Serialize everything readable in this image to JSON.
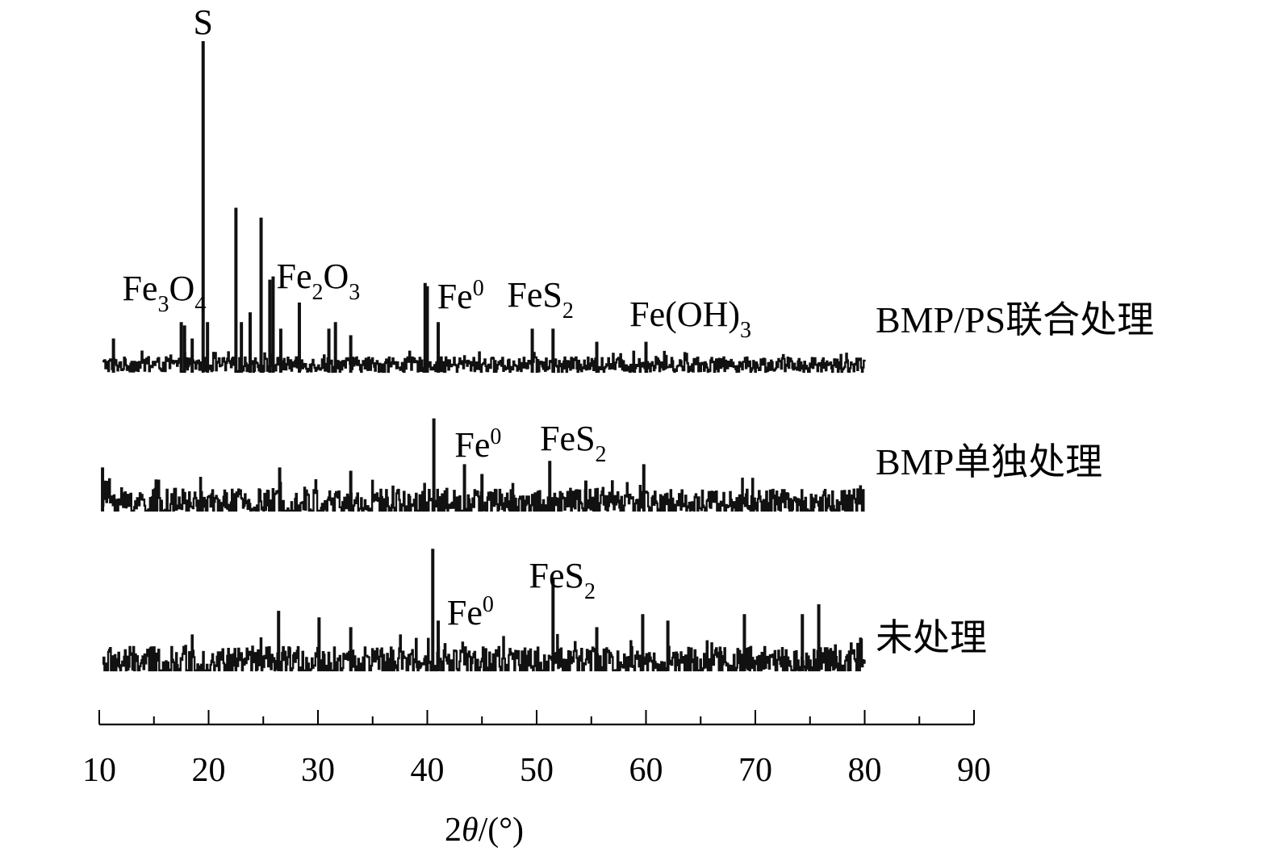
{
  "chart_data": {
    "type": "line",
    "xlabel": "2θ/(°)",
    "xlabel_parts": {
      "pre": "2",
      "theta": "θ",
      "post": "/(°)"
    },
    "xlim": [
      10,
      90
    ],
    "xticks_major": [
      10,
      20,
      30,
      40,
      50,
      60,
      70,
      80,
      90
    ],
    "xtick_labels": [
      "10",
      "20",
      "30",
      "40",
      "50",
      "60",
      "70",
      "80",
      "90"
    ],
    "data_xrange": [
      10.3,
      80
    ],
    "grid": false,
    "legend": "none (series labelled at right of each pattern)",
    "series": [
      {
        "name": "BMP/PS联合处理",
        "noise_amplitude": 0.045,
        "peaks": [
          {
            "x": 11.3,
            "h": 0.09
          },
          {
            "x": 17.5,
            "h": 0.14
          },
          {
            "x": 17.8,
            "h": 0.13
          },
          {
            "x": 18.5,
            "h": 0.09
          },
          {
            "x": 19.5,
            "h": 1.0
          },
          {
            "x": 19.9,
            "h": 0.14
          },
          {
            "x": 22.5,
            "h": 0.49
          },
          {
            "x": 23.0,
            "h": 0.14
          },
          {
            "x": 23.8,
            "h": 0.17
          },
          {
            "x": 24.8,
            "h": 0.46
          },
          {
            "x": 25.6,
            "h": 0.27
          },
          {
            "x": 25.9,
            "h": 0.28
          },
          {
            "x": 26.6,
            "h": 0.12
          },
          {
            "x": 28.3,
            "h": 0.2
          },
          {
            "x": 31.0,
            "h": 0.12
          },
          {
            "x": 31.6,
            "h": 0.14
          },
          {
            "x": 33.0,
            "h": 0.1
          },
          {
            "x": 39.8,
            "h": 0.26
          },
          {
            "x": 40.0,
            "h": 0.25
          },
          {
            "x": 41.0,
            "h": 0.14
          },
          {
            "x": 49.6,
            "h": 0.12
          },
          {
            "x": 51.5,
            "h": 0.12
          },
          {
            "x": 55.5,
            "h": 0.08
          },
          {
            "x": 60.0,
            "h": 0.08
          }
        ]
      },
      {
        "name": "BMP单独处理",
        "noise_amplitude": 0.09,
        "peaks": [
          {
            "x": 10.3,
            "h": 0.12
          },
          {
            "x": 26.5,
            "h": 0.12
          },
          {
            "x": 33.0,
            "h": 0.11
          },
          {
            "x": 40.6,
            "h": 0.27
          },
          {
            "x": 43.4,
            "h": 0.13
          },
          {
            "x": 45.0,
            "h": 0.1
          },
          {
            "x": 51.2,
            "h": 0.14
          },
          {
            "x": 54.5,
            "h": 0.08
          },
          {
            "x": 59.8,
            "h": 0.13
          }
        ]
      },
      {
        "name": "未处理",
        "noise_amplitude": 0.1,
        "peaks": [
          {
            "x": 26.4,
            "h": 0.17
          },
          {
            "x": 30.1,
            "h": 0.15
          },
          {
            "x": 33.0,
            "h": 0.12
          },
          {
            "x": 40.5,
            "h": 0.36
          },
          {
            "x": 41.0,
            "h": 0.14
          },
          {
            "x": 51.5,
            "h": 0.27
          },
          {
            "x": 55.5,
            "h": 0.12
          },
          {
            "x": 59.7,
            "h": 0.16
          },
          {
            "x": 62.0,
            "h": 0.14
          },
          {
            "x": 69.0,
            "h": 0.16
          },
          {
            "x": 74.3,
            "h": 0.16
          },
          {
            "x": 75.8,
            "h": 0.19
          }
        ]
      }
    ],
    "annotations": [
      {
        "series": 0,
        "x": 12.1,
        "base": "Fe",
        "sub1": "3",
        "mid": "O",
        "sub2": "4"
      },
      {
        "series": 0,
        "x": 19.5,
        "base": "S"
      },
      {
        "series": 0,
        "x": 26.2,
        "base": "Fe",
        "sub1": "2",
        "mid": "O",
        "sub2": "3"
      },
      {
        "series": 0,
        "x": 40.9,
        "base": "Fe",
        "sup": "0"
      },
      {
        "series": 0,
        "x": 47.3,
        "base": "FeS",
        "sub1": "2"
      },
      {
        "series": 0,
        "x": 58.5,
        "base": "Fe(OH)",
        "sub1": "3"
      },
      {
        "series": 1,
        "x": 42.5,
        "base": "Fe",
        "sup": "0"
      },
      {
        "series": 1,
        "x": 50.3,
        "base": "FeS",
        "sub1": "2"
      },
      {
        "series": 2,
        "x": 41.8,
        "base": "Fe",
        "sup": "0"
      },
      {
        "series": 2,
        "x": 49.3,
        "base": "FeS",
        "sub1": "2"
      }
    ]
  }
}
